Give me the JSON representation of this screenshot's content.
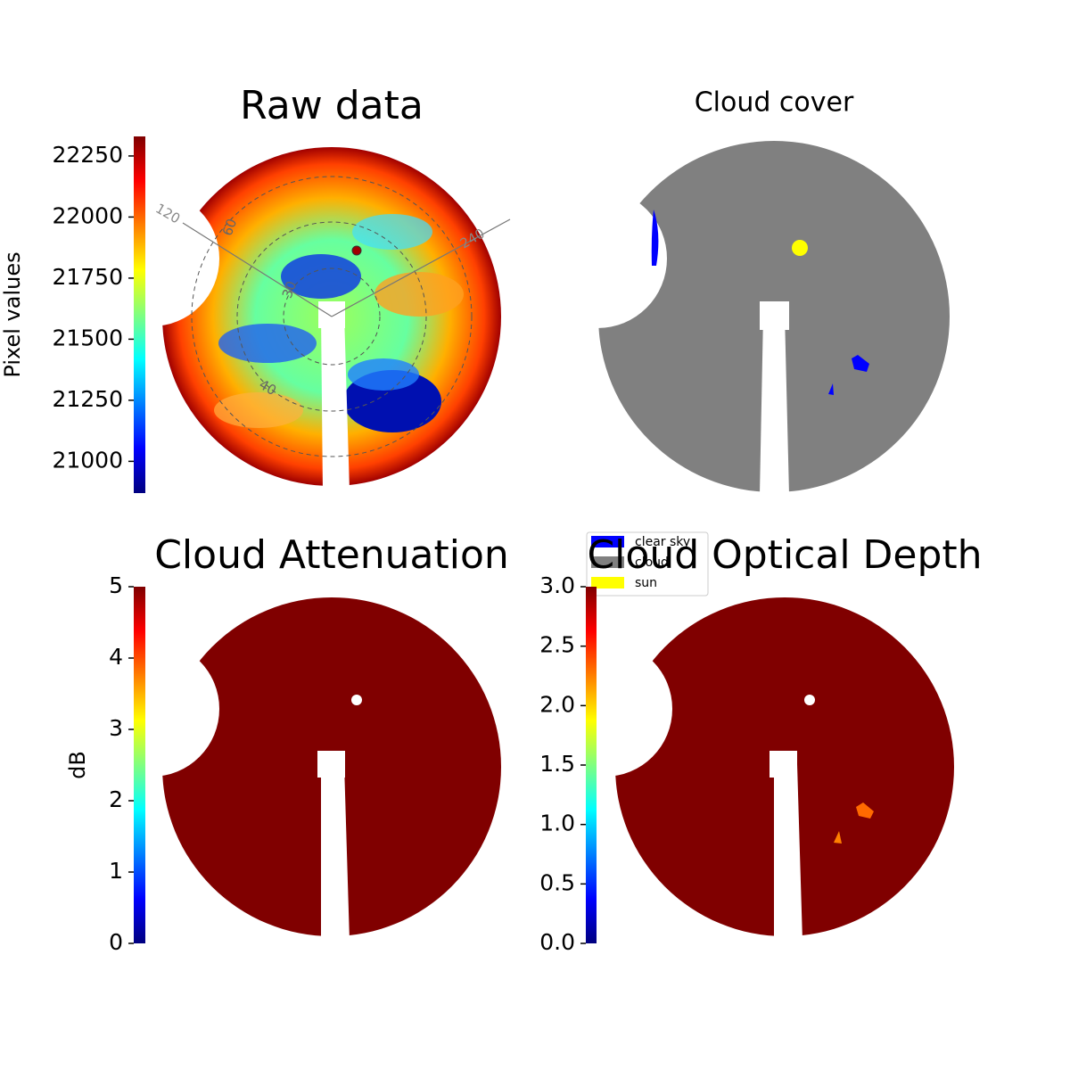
{
  "chart_data": [
    {
      "type": "heatmap",
      "title": "Raw data",
      "colorbar_label": "Pixel values",
      "colormap": "jet",
      "ylim": [
        20870,
        22330
      ],
      "yticks": [
        21000,
        21250,
        21500,
        21750,
        22000,
        22250
      ],
      "angle_ticks": [
        120,
        240
      ],
      "zenith_ticks": [
        30,
        40,
        60
      ]
    },
    {
      "type": "categorical-map",
      "title": "Cloud cover",
      "categories": [
        "clear sky",
        "cloud",
        "sun"
      ],
      "colors": [
        "#0000ff",
        "#808080",
        "#ffff00"
      ]
    },
    {
      "type": "heatmap",
      "title": "Cloud Attenuation",
      "colorbar_label": "dB",
      "colormap": "jet",
      "ylim": [
        0,
        5
      ],
      "yticks": [
        0,
        1,
        2,
        3,
        4,
        5
      ]
    },
    {
      "type": "heatmap",
      "title": "Cloud Optical Depth",
      "colormap": "jet",
      "ylim": [
        0,
        3
      ],
      "yticks": [
        {
          "value": 0,
          "label": "0.0"
        },
        {
          "value": 0.5,
          "label": "0.5"
        },
        {
          "value": 1,
          "label": "1.0"
        },
        {
          "value": 1.5,
          "label": "1.5"
        },
        {
          "value": 2,
          "label": "2.0"
        },
        {
          "value": 2.5,
          "label": "2.5"
        },
        {
          "value": 3,
          "label": "3.0"
        }
      ]
    }
  ]
}
